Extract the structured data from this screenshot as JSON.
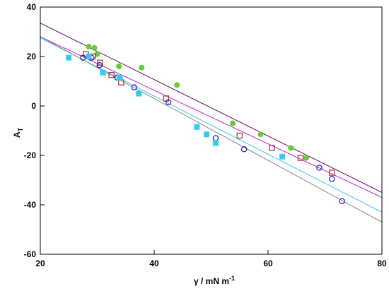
{
  "chart_data": {
    "type": "scatter",
    "xlabel": "γ / mN m",
    "xlabel_sup": "-1",
    "ylabel": "A",
    "ylabel_sub": "T",
    "xlim": [
      20,
      80
    ],
    "ylim": [
      -60,
      40
    ],
    "xticks": [
      "20",
      "40",
      "60",
      "80"
    ],
    "xtick_values": [
      20,
      40,
      60,
      80
    ],
    "yticks": [
      "40",
      "20",
      "0",
      "-20",
      "-40",
      "-60"
    ],
    "ytick_values": [
      40,
      20,
      0,
      -20,
      -40,
      -60
    ],
    "grid": false,
    "series": [
      {
        "marker": "filled-circle",
        "color": "#66cc33",
        "points": [
          [
            28.5,
            24
          ],
          [
            29.5,
            23.5
          ],
          [
            30,
            21
          ],
          [
            33.8,
            16
          ],
          [
            37.8,
            15.5
          ],
          [
            44,
            8.5
          ],
          [
            53.8,
            -7
          ],
          [
            58.7,
            -11.5
          ],
          [
            64,
            -17
          ],
          [
            66.7,
            -21
          ]
        ]
      },
      {
        "marker": "open-square",
        "color": "#993333",
        "points": [
          [
            28,
            21
          ],
          [
            29.2,
            20
          ],
          [
            30.5,
            17.5
          ],
          [
            32.5,
            12.5
          ],
          [
            34.2,
            9.5
          ],
          [
            42.1,
            3
          ],
          [
            55,
            -12
          ],
          [
            60.7,
            -17
          ],
          [
            65.7,
            -21
          ],
          [
            71.2,
            -27
          ]
        ]
      },
      {
        "marker": "open-circle",
        "color": "#1a1acc",
        "points": [
          [
            27.5,
            19.5
          ],
          [
            29,
            19.5
          ],
          [
            30.4,
            16.5
          ],
          [
            33.5,
            11.5
          ],
          [
            36.5,
            7.5
          ],
          [
            42.5,
            1.5
          ],
          [
            50.8,
            -13
          ],
          [
            55.8,
            -17.5
          ],
          [
            69,
            -25
          ],
          [
            71.2,
            -29.5
          ],
          [
            73,
            -38.5
          ]
        ]
      },
      {
        "marker": "filled-square",
        "color": "#33ccee",
        "points": [
          [
            25,
            19.5
          ],
          [
            28.5,
            20
          ],
          [
            31,
            13.5
          ],
          [
            34,
            11.5
          ],
          [
            37.3,
            5
          ],
          [
            47.5,
            -8.5
          ],
          [
            49.2,
            -11.5
          ],
          [
            50.8,
            -15
          ],
          [
            62.5,
            -20.5
          ]
        ]
      }
    ],
    "fit_lines": [
      {
        "color": "#660066",
        "x": [
          20,
          80
        ],
        "y": [
          33.5,
          -35
        ]
      },
      {
        "color": "#cc22cc",
        "x": [
          20,
          80
        ],
        "y": [
          28,
          -37
        ]
      },
      {
        "color": "#33ccee",
        "x": [
          20,
          80
        ],
        "y": [
          27.5,
          -43
        ]
      },
      {
        "color": "#888888",
        "x": [
          20,
          80
        ],
        "y": [
          28,
          -47
        ]
      }
    ]
  }
}
